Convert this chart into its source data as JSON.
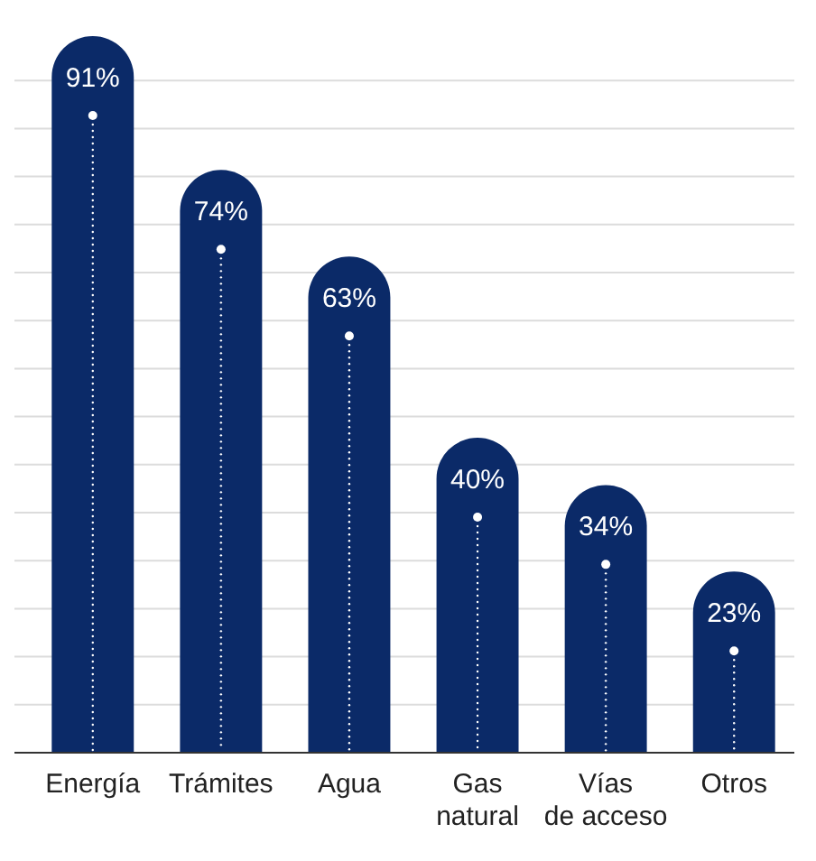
{
  "chart_data": {
    "type": "bar",
    "categories": [
      "Energía",
      "Trámites",
      "Agua",
      "Gas natural",
      "Vías de acceso",
      "Otros"
    ],
    "values": [
      91,
      74,
      63,
      40,
      34,
      23
    ],
    "value_labels": [
      "91%",
      "74%",
      "63%",
      "40%",
      "34%",
      "23%"
    ],
    "color": "#0b2a68",
    "grid": "y",
    "tick_labels": "x"
  }
}
